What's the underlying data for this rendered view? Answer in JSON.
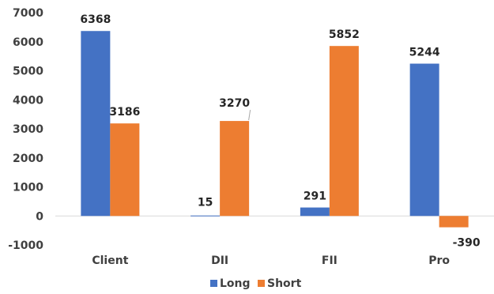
{
  "colors": {
    "Long": "#4472c4",
    "Short": "#ed7d31",
    "axis": "#d9d9d9",
    "text": "#404040"
  },
  "chart_data": {
    "type": "bar",
    "categories": [
      "Client",
      "DII",
      "FII",
      "Pro"
    ],
    "series": [
      {
        "name": "Long",
        "values": [
          6368,
          15,
          291,
          5244
        ]
      },
      {
        "name": "Short",
        "values": [
          3186,
          3270,
          5852,
          -390
        ]
      }
    ],
    "ylim": [
      -1000,
      7000
    ],
    "yticks": [
      7000,
      6000,
      5000,
      4000,
      3000,
      2000,
      1000,
      0,
      -1000
    ],
    "grid": false,
    "legend": "bottom"
  }
}
